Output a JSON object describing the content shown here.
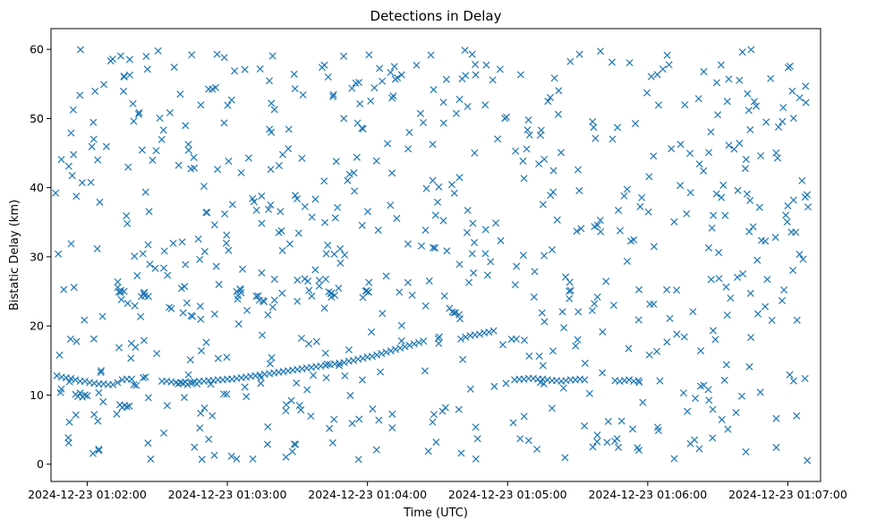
{
  "chart_data": {
    "type": "scatter",
    "title": "Detections in Delay",
    "xlabel": "Time (UTC)",
    "ylabel": "Bistatic Delay (km)",
    "marker": "x",
    "color": "#1f77b4",
    "grid": false,
    "x_units": "seconds after 2024-12-23 01:02:00 UTC",
    "xlim": [
      -15.5,
      314
    ],
    "ylim": [
      -2.5,
      63
    ],
    "x_ticks": [
      {
        "value": 0,
        "label": "2024-12-23 01:02:00"
      },
      {
        "value": 60,
        "label": "2024-12-23 01:03:00"
      },
      {
        "value": 120,
        "label": "2024-12-23 01:04:00"
      },
      {
        "value": 180,
        "label": "2024-12-23 01:05:00"
      },
      {
        "value": 240,
        "label": "2024-12-23 01:06:00"
      },
      {
        "value": 300,
        "label": "2024-12-23 01:07:00"
      }
    ],
    "y_ticks": [
      0,
      10,
      20,
      30,
      40,
      50,
      60
    ],
    "track_points": [
      [
        -13,
        12.8
      ],
      [
        -11,
        12.6
      ],
      [
        -9,
        12.5
      ],
      [
        -7,
        12.4
      ],
      [
        -5,
        12.2
      ],
      [
        -3,
        12.0
      ],
      [
        -1,
        12.0
      ],
      [
        1,
        11.8
      ],
      [
        3,
        11.7
      ],
      [
        5,
        11.6
      ],
      [
        7,
        11.6
      ],
      [
        9,
        11.5
      ],
      [
        11,
        11.5
      ],
      [
        13,
        11.8
      ],
      [
        15,
        12.2
      ],
      [
        17,
        12.3
      ],
      [
        19,
        12.3
      ],
      [
        -5,
        10.1
      ],
      [
        -4,
        9.8
      ],
      [
        -3,
        10.3
      ],
      [
        -2,
        9.7
      ],
      [
        -1,
        10.0
      ],
      [
        0,
        9.9
      ],
      [
        14,
        8.6
      ],
      [
        15,
        8.2
      ],
      [
        16,
        8.5
      ],
      [
        17,
        8.3
      ],
      [
        18,
        8.4
      ],
      [
        32,
        12.0
      ],
      [
        34,
        12.0
      ],
      [
        36,
        11.9
      ],
      [
        38,
        11.8
      ],
      [
        40,
        11.8
      ],
      [
        42,
        11.9
      ],
      [
        44,
        11.8
      ],
      [
        46,
        11.9
      ],
      [
        48,
        12.0
      ],
      [
        50,
        12.0
      ],
      [
        52,
        12.1
      ],
      [
        54,
        12.1
      ],
      [
        56,
        12.2
      ],
      [
        58,
        12.2
      ],
      [
        60,
        12.3
      ],
      [
        62,
        12.3
      ],
      [
        64,
        12.4
      ],
      [
        66,
        12.5
      ],
      [
        68,
        12.6
      ],
      [
        70,
        12.7
      ],
      [
        72,
        12.8
      ],
      [
        74,
        12.9
      ],
      [
        76,
        13.0
      ],
      [
        78,
        13.1
      ],
      [
        80,
        13.2
      ],
      [
        82,
        13.3
      ],
      [
        84,
        13.4
      ],
      [
        86,
        13.5
      ],
      [
        88,
        13.6
      ],
      [
        90,
        13.7
      ],
      [
        92,
        13.8
      ],
      [
        94,
        13.9
      ],
      [
        96,
        14.0
      ],
      [
        98,
        14.1
      ],
      [
        100,
        14.2
      ],
      [
        102,
        14.3
      ],
      [
        104,
        14.4
      ],
      [
        106,
        14.5
      ],
      [
        108,
        14.6
      ],
      [
        110,
        14.7
      ],
      [
        112,
        14.9
      ],
      [
        114,
        15.0
      ],
      [
        116,
        15.2
      ],
      [
        118,
        15.3
      ],
      [
        120,
        15.5
      ],
      [
        122,
        15.6
      ],
      [
        124,
        15.8
      ],
      [
        126,
        16.0
      ],
      [
        128,
        16.2
      ],
      [
        130,
        16.4
      ],
      [
        132,
        16.6
      ],
      [
        134,
        16.8
      ],
      [
        136,
        17.0
      ],
      [
        138,
        17.2
      ],
      [
        140,
        17.4
      ],
      [
        142,
        17.6
      ],
      [
        144,
        17.8
      ],
      [
        160,
        18.1
      ],
      [
        162,
        18.4
      ],
      [
        164,
        18.6
      ],
      [
        166,
        18.7
      ],
      [
        168,
        18.8
      ],
      [
        170,
        19.0
      ],
      [
        172,
        19.1
      ],
      [
        174,
        19.3
      ],
      [
        183,
        12.2
      ],
      [
        185,
        12.3
      ],
      [
        187,
        12.3
      ],
      [
        189,
        12.4
      ],
      [
        191,
        12.4
      ],
      [
        193,
        12.3
      ],
      [
        195,
        12.3
      ],
      [
        197,
        12.2
      ],
      [
        199,
        12.1
      ],
      [
        201,
        12.1
      ],
      [
        203,
        12.0
      ],
      [
        205,
        12.1
      ],
      [
        207,
        12.2
      ],
      [
        209,
        12.2
      ],
      [
        211,
        12.3
      ],
      [
        213,
        12.2
      ],
      [
        226,
        12.1
      ],
      [
        228,
        12.0
      ],
      [
        230,
        12.1
      ],
      [
        232,
        12.2
      ],
      [
        234,
        12.0
      ],
      [
        236,
        12.1
      ],
      [
        39,
        11.6
      ],
      [
        41,
        11.7
      ],
      [
        43,
        11.5
      ],
      [
        45,
        11.8
      ],
      [
        47,
        11.6
      ],
      [
        20,
        11.5
      ],
      [
        21,
        11.4
      ],
      [
        24,
        12.5
      ],
      [
        25,
        12.6
      ]
    ],
    "clusters": [
      {
        "x": 14,
        "y": 25.0
      },
      {
        "x": 25,
        "y": 24.7
      },
      {
        "x": 64,
        "y": 24.8
      },
      {
        "x": 74,
        "y": 24.0
      },
      {
        "x": 105,
        "y": 24.6
      },
      {
        "x": 120,
        "y": 24.6
      },
      {
        "x": 158,
        "y": 21.5
      }
    ]
  }
}
